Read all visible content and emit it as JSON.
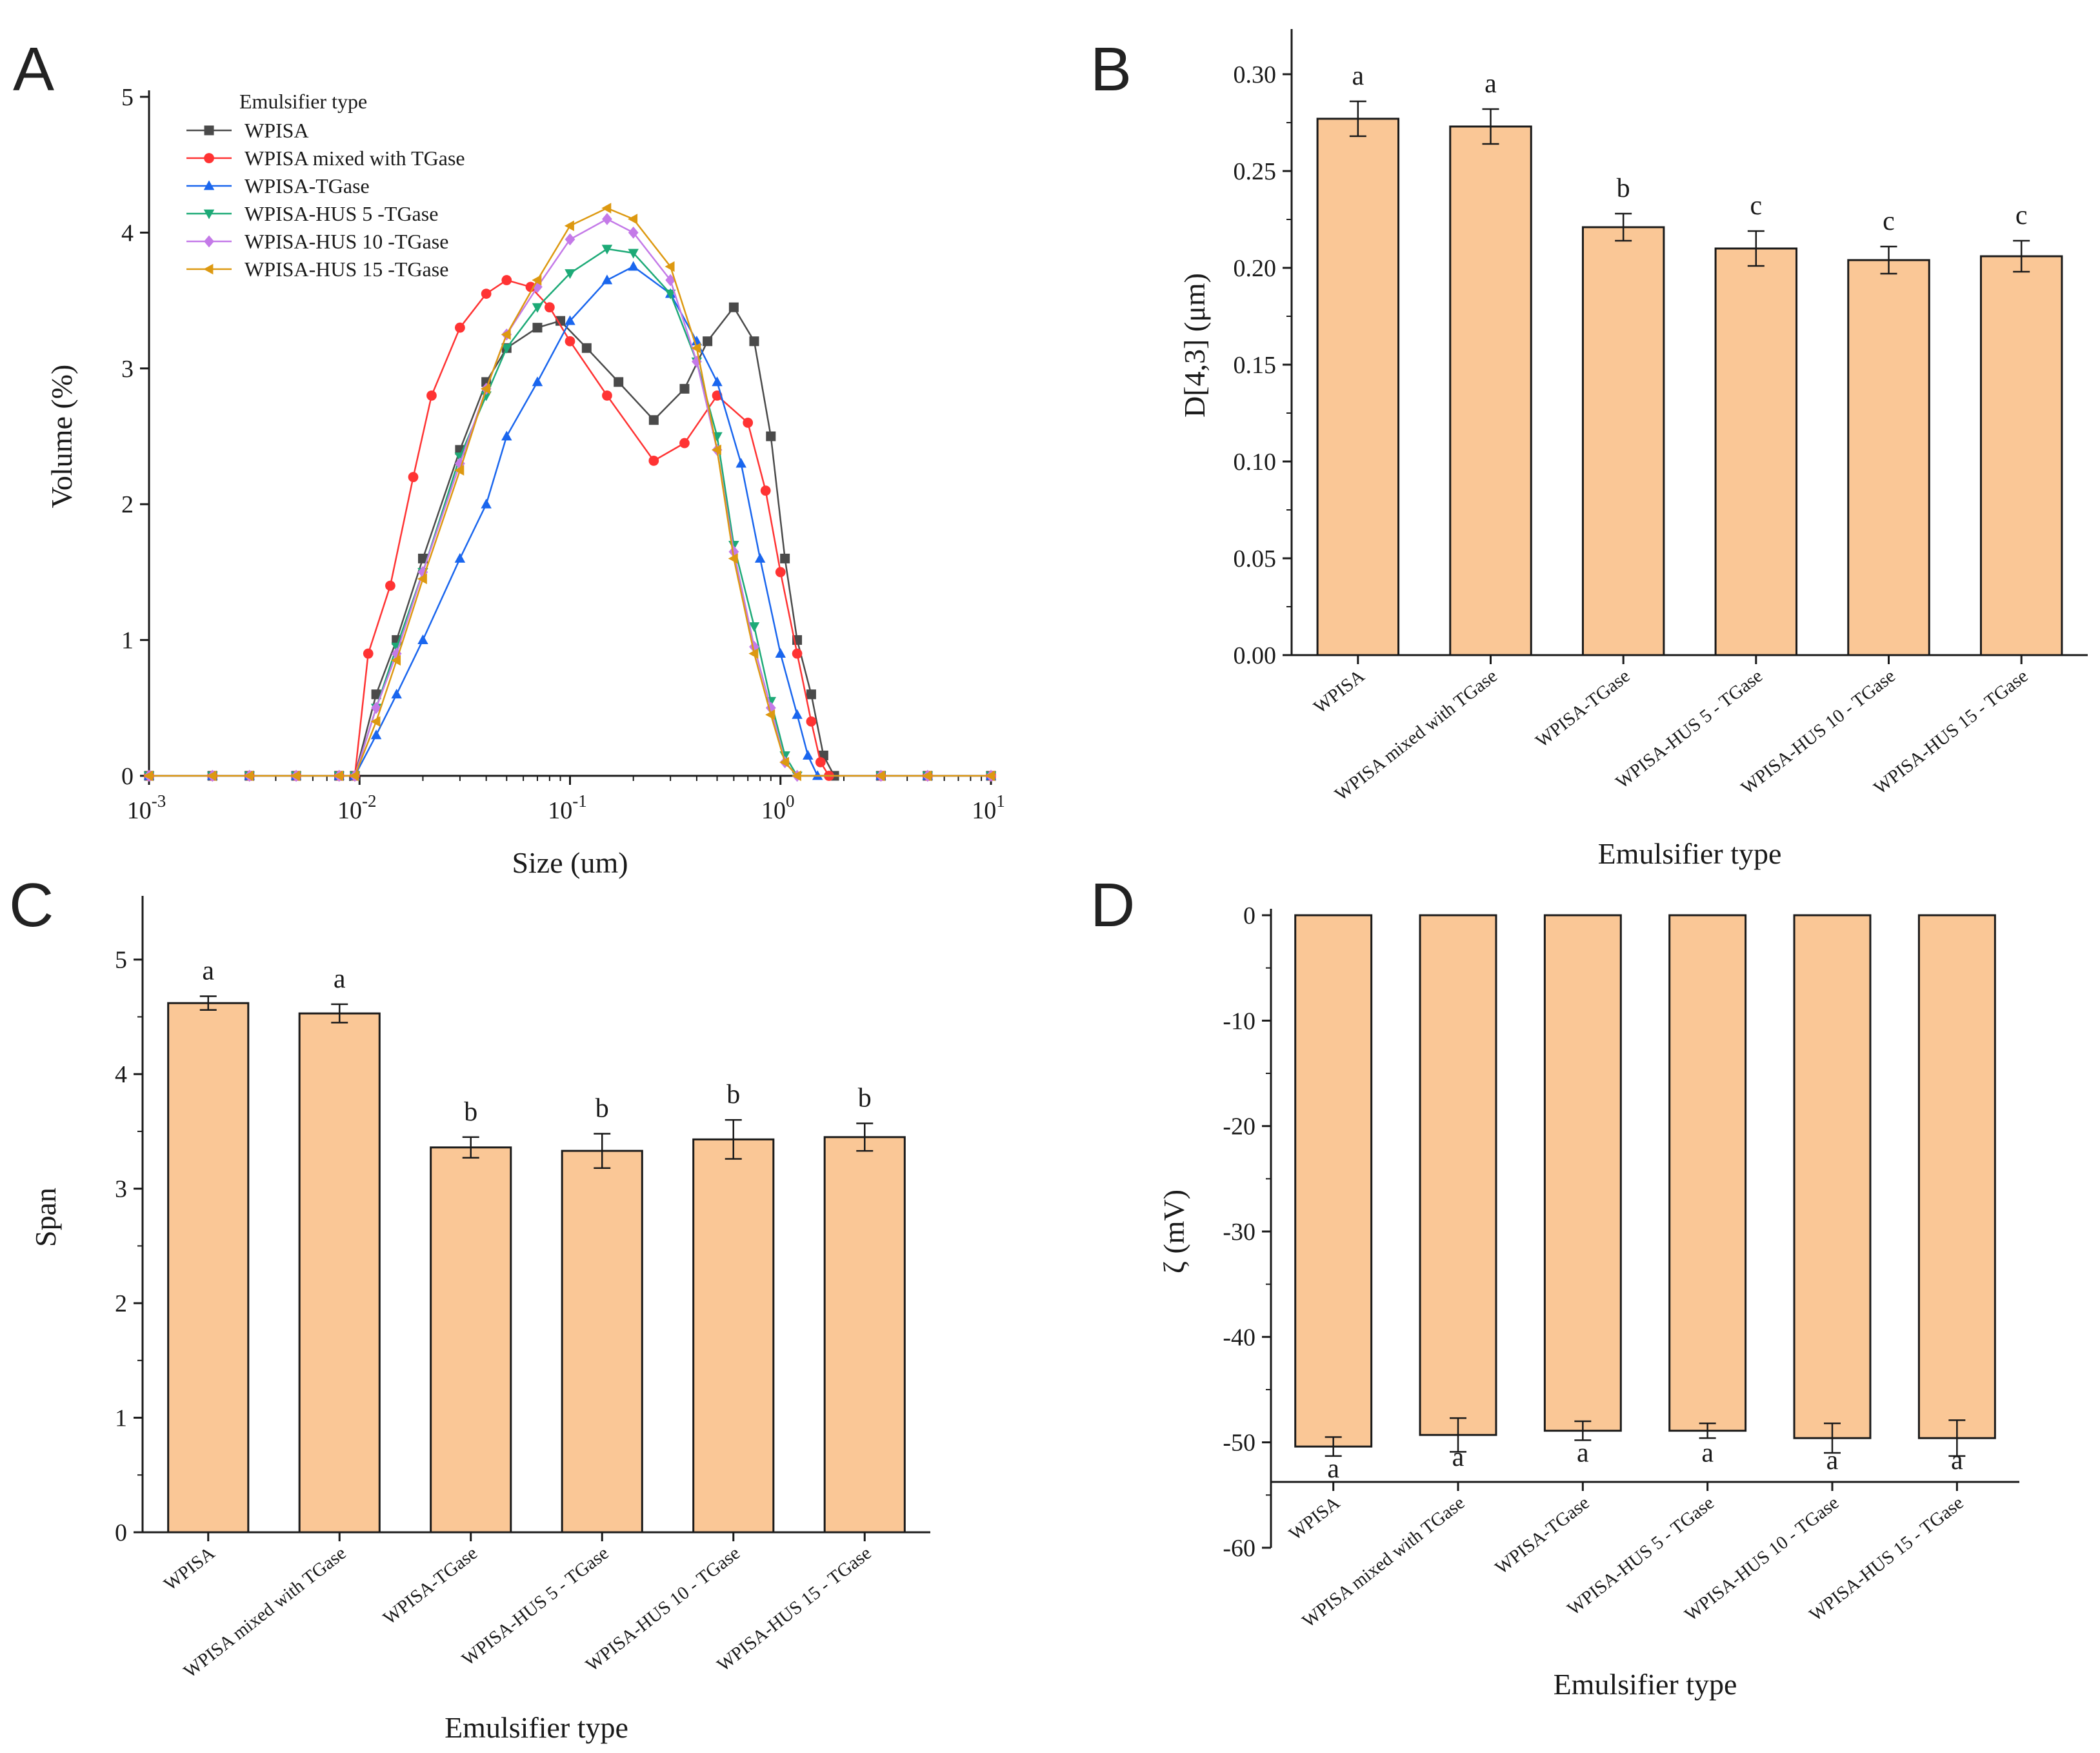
{
  "colors": {
    "bar_fill": "#fac796",
    "bar_stroke": "#1a1a1a",
    "axis": "#1a1a1a"
  },
  "chart_data": [
    {
      "panel": "A",
      "type": "line",
      "xscale": "log",
      "xlim": [
        0.001,
        10
      ],
      "ylim": [
        0,
        5
      ],
      "xticks": [
        0.001,
        0.01,
        0.1,
        1,
        10
      ],
      "xtick_labels": [
        {
          "base": "10",
          "exp": "-3"
        },
        {
          "base": "10",
          "exp": "-2"
        },
        {
          "base": "10",
          "exp": "-1"
        },
        {
          "base": "10",
          "exp": "0"
        },
        {
          "base": "10",
          "exp": "1"
        }
      ],
      "yticks": [
        0,
        1,
        2,
        3,
        4,
        5
      ],
      "xlabel": "Size (um)",
      "ylabel": "Volume (%)",
      "legend_title": "Emulsifier type",
      "legend_position": "top-left",
      "series": [
        {
          "name": "WPISA",
          "color": "#4a4a4a",
          "marker": "square",
          "points": [
            [
              0.001,
              0
            ],
            [
              0.002,
              0
            ],
            [
              0.003,
              0
            ],
            [
              0.005,
              0
            ],
            [
              0.008,
              0
            ],
            [
              0.0095,
              0
            ],
            [
              0.012,
              0.6
            ],
            [
              0.015,
              1.0
            ],
            [
              0.02,
              1.6
            ],
            [
              0.03,
              2.4
            ],
            [
              0.04,
              2.9
            ],
            [
              0.05,
              3.15
            ],
            [
              0.07,
              3.3
            ],
            [
              0.09,
              3.35
            ],
            [
              0.12,
              3.15
            ],
            [
              0.17,
              2.9
            ],
            [
              0.25,
              2.62
            ],
            [
              0.35,
              2.85
            ],
            [
              0.45,
              3.2
            ],
            [
              0.6,
              3.45
            ],
            [
              0.75,
              3.2
            ],
            [
              0.9,
              2.5
            ],
            [
              1.05,
              1.6
            ],
            [
              1.2,
              1.0
            ],
            [
              1.4,
              0.6
            ],
            [
              1.6,
              0.15
            ],
            [
              1.8,
              0
            ],
            [
              3,
              0
            ],
            [
              5,
              0
            ],
            [
              10,
              0
            ]
          ]
        },
        {
          "name": "WPISA mixed with TGase",
          "color": "#ff3333",
          "marker": "circle",
          "points": [
            [
              0.001,
              0
            ],
            [
              0.002,
              0
            ],
            [
              0.003,
              0
            ],
            [
              0.005,
              0
            ],
            [
              0.008,
              0
            ],
            [
              0.0095,
              0
            ],
            [
              0.011,
              0.9
            ],
            [
              0.014,
              1.4
            ],
            [
              0.018,
              2.2
            ],
            [
              0.022,
              2.8
            ],
            [
              0.03,
              3.3
            ],
            [
              0.04,
              3.55
            ],
            [
              0.05,
              3.65
            ],
            [
              0.065,
              3.6
            ],
            [
              0.08,
              3.45
            ],
            [
              0.1,
              3.2
            ],
            [
              0.15,
              2.8
            ],
            [
              0.25,
              2.32
            ],
            [
              0.35,
              2.45
            ],
            [
              0.5,
              2.8
            ],
            [
              0.7,
              2.6
            ],
            [
              0.85,
              2.1
            ],
            [
              1.0,
              1.5
            ],
            [
              1.2,
              0.9
            ],
            [
              1.4,
              0.4
            ],
            [
              1.55,
              0.1
            ],
            [
              1.7,
              0
            ],
            [
              3,
              0
            ],
            [
              5,
              0
            ],
            [
              10,
              0
            ]
          ]
        },
        {
          "name": "WPISA-TGase",
          "color": "#1a66ee",
          "marker": "triangle-up",
          "points": [
            [
              0.001,
              0
            ],
            [
              0.002,
              0
            ],
            [
              0.003,
              0
            ],
            [
              0.005,
              0
            ],
            [
              0.008,
              0
            ],
            [
              0.0095,
              0
            ],
            [
              0.012,
              0.3
            ],
            [
              0.015,
              0.6
            ],
            [
              0.02,
              1.0
            ],
            [
              0.03,
              1.6
            ],
            [
              0.04,
              2.0
            ],
            [
              0.05,
              2.5
            ],
            [
              0.07,
              2.9
            ],
            [
              0.1,
              3.35
            ],
            [
              0.15,
              3.65
            ],
            [
              0.2,
              3.75
            ],
            [
              0.3,
              3.55
            ],
            [
              0.4,
              3.2
            ],
            [
              0.5,
              2.9
            ],
            [
              0.65,
              2.3
            ],
            [
              0.8,
              1.6
            ],
            [
              1.0,
              0.9
            ],
            [
              1.2,
              0.45
            ],
            [
              1.35,
              0.15
            ],
            [
              1.5,
              0
            ],
            [
              3,
              0
            ],
            [
              5,
              0
            ],
            [
              10,
              0
            ]
          ]
        },
        {
          "name": "WPISA-HUS 5 -TGase",
          "color": "#1daa77",
          "marker": "triangle-down",
          "points": [
            [
              0.001,
              0
            ],
            [
              0.002,
              0
            ],
            [
              0.003,
              0
            ],
            [
              0.005,
              0
            ],
            [
              0.008,
              0
            ],
            [
              0.0095,
              0
            ],
            [
              0.012,
              0.5
            ],
            [
              0.015,
              0.95
            ],
            [
              0.02,
              1.5
            ],
            [
              0.03,
              2.35
            ],
            [
              0.04,
              2.8
            ],
            [
              0.05,
              3.15
            ],
            [
              0.07,
              3.45
            ],
            [
              0.1,
              3.7
            ],
            [
              0.15,
              3.88
            ],
            [
              0.2,
              3.85
            ],
            [
              0.3,
              3.55
            ],
            [
              0.4,
              3.05
            ],
            [
              0.5,
              2.5
            ],
            [
              0.6,
              1.7
            ],
            [
              0.75,
              1.1
            ],
            [
              0.9,
              0.55
            ],
            [
              1.05,
              0.15
            ],
            [
              1.2,
              0
            ],
            [
              3,
              0
            ],
            [
              5,
              0
            ],
            [
              10,
              0
            ]
          ]
        },
        {
          "name": "WPISA-HUS 10 -TGase",
          "color": "#c47ae8",
          "marker": "diamond",
          "points": [
            [
              0.001,
              0
            ],
            [
              0.002,
              0
            ],
            [
              0.003,
              0
            ],
            [
              0.005,
              0
            ],
            [
              0.008,
              0
            ],
            [
              0.0095,
              0
            ],
            [
              0.012,
              0.5
            ],
            [
              0.015,
              0.9
            ],
            [
              0.02,
              1.5
            ],
            [
              0.03,
              2.3
            ],
            [
              0.04,
              2.85
            ],
            [
              0.05,
              3.25
            ],
            [
              0.07,
              3.6
            ],
            [
              0.1,
              3.95
            ],
            [
              0.15,
              4.1
            ],
            [
              0.2,
              4.0
            ],
            [
              0.3,
              3.65
            ],
            [
              0.4,
              3.05
            ],
            [
              0.5,
              2.4
            ],
            [
              0.6,
              1.65
            ],
            [
              0.75,
              0.95
            ],
            [
              0.9,
              0.5
            ],
            [
              1.05,
              0.1
            ],
            [
              1.2,
              0
            ],
            [
              3,
              0
            ],
            [
              5,
              0
            ],
            [
              10,
              0
            ]
          ]
        },
        {
          "name": "WPISA-HUS 15 -TGase",
          "color": "#dd9911",
          "marker": "triangle-left",
          "points": [
            [
              0.001,
              0
            ],
            [
              0.002,
              0
            ],
            [
              0.003,
              0
            ],
            [
              0.005,
              0
            ],
            [
              0.008,
              0
            ],
            [
              0.0095,
              0
            ],
            [
              0.012,
              0.4
            ],
            [
              0.015,
              0.85
            ],
            [
              0.02,
              1.45
            ],
            [
              0.03,
              2.25
            ],
            [
              0.04,
              2.85
            ],
            [
              0.05,
              3.25
            ],
            [
              0.07,
              3.65
            ],
            [
              0.1,
              4.05
            ],
            [
              0.15,
              4.18
            ],
            [
              0.2,
              4.1
            ],
            [
              0.3,
              3.75
            ],
            [
              0.4,
              3.15
            ],
            [
              0.5,
              2.4
            ],
            [
              0.6,
              1.6
            ],
            [
              0.75,
              0.9
            ],
            [
              0.9,
              0.45
            ],
            [
              1.05,
              0.1
            ],
            [
              1.2,
              0
            ],
            [
              3,
              0
            ],
            [
              5,
              0
            ],
            [
              10,
              0
            ]
          ]
        }
      ]
    },
    {
      "panel": "B",
      "type": "bar",
      "categories": [
        "WPISA",
        "WPISA mixed with TGase",
        "WPISA-TGase",
        "WPISA-HUS 5 - TGase",
        "WPISA-HUS 10 - TGase",
        "WPISA-HUS 15 - TGase"
      ],
      "values": [
        0.277,
        0.273,
        0.221,
        0.21,
        0.204,
        0.206
      ],
      "errors": [
        0.009,
        0.009,
        0.007,
        0.009,
        0.007,
        0.008
      ],
      "significance": [
        "a",
        "a",
        "b",
        "c",
        "c",
        "c"
      ],
      "ylim": [
        0,
        0.32
      ],
      "yticks": [
        0.0,
        0.05,
        0.1,
        0.15,
        0.2,
        0.25,
        0.3
      ],
      "ytick_labels": [
        "0.00",
        "0.05",
        "0.10",
        "0.15",
        "0.20",
        "0.25",
        "0.30"
      ],
      "xlabel": "Emulsifier type",
      "ylabel": "D[4,3] (μm)"
    },
    {
      "panel": "C",
      "type": "bar",
      "categories": [
        "WPISA",
        "WPISA mixed with TGase",
        "WPISA-TGase",
        "WPISA-HUS 5 - TGase",
        "WPISA-HUS 10 - TGase",
        "WPISA-HUS 15 - TGase"
      ],
      "values": [
        4.62,
        4.53,
        3.36,
        3.33,
        3.43,
        3.45
      ],
      "errors": [
        0.06,
        0.08,
        0.09,
        0.15,
        0.17,
        0.12
      ],
      "significance": [
        "a",
        "a",
        "b",
        "b",
        "b",
        "b"
      ],
      "ylim": [
        0,
        5.5
      ],
      "yticks": [
        0,
        1,
        2,
        3,
        4,
        5
      ],
      "ytick_labels": [
        "0",
        "1",
        "2",
        "3",
        "4",
        "5"
      ],
      "xlabel": "Emulsifier type",
      "ylabel": "Span"
    },
    {
      "panel": "D",
      "type": "bar",
      "categories": [
        "WPISA",
        "WPISA mixed with TGase",
        "WPISA-TGase",
        "WPISA-HUS 5 - TGase",
        "WPISA-HUS 10 - TGase",
        "WPISA-HUS 15 - TGase"
      ],
      "values": [
        -50.4,
        -49.3,
        -48.9,
        -48.9,
        -49.6,
        -49.6
      ],
      "errors": [
        0.9,
        1.6,
        0.9,
        0.7,
        1.4,
        1.7
      ],
      "significance": [
        "a",
        "a",
        "a",
        "a",
        "a",
        "a"
      ],
      "ylim": [
        -60,
        0
      ],
      "yticks": [
        0,
        -10,
        -20,
        -30,
        -40,
        -50,
        -60
      ],
      "ytick_labels": [
        "0",
        "-10",
        "-20",
        "-30",
        "-40",
        "-50",
        "-60"
      ],
      "xlabel": "Emulsifier type",
      "ylabel": "ζ (mV)"
    }
  ]
}
